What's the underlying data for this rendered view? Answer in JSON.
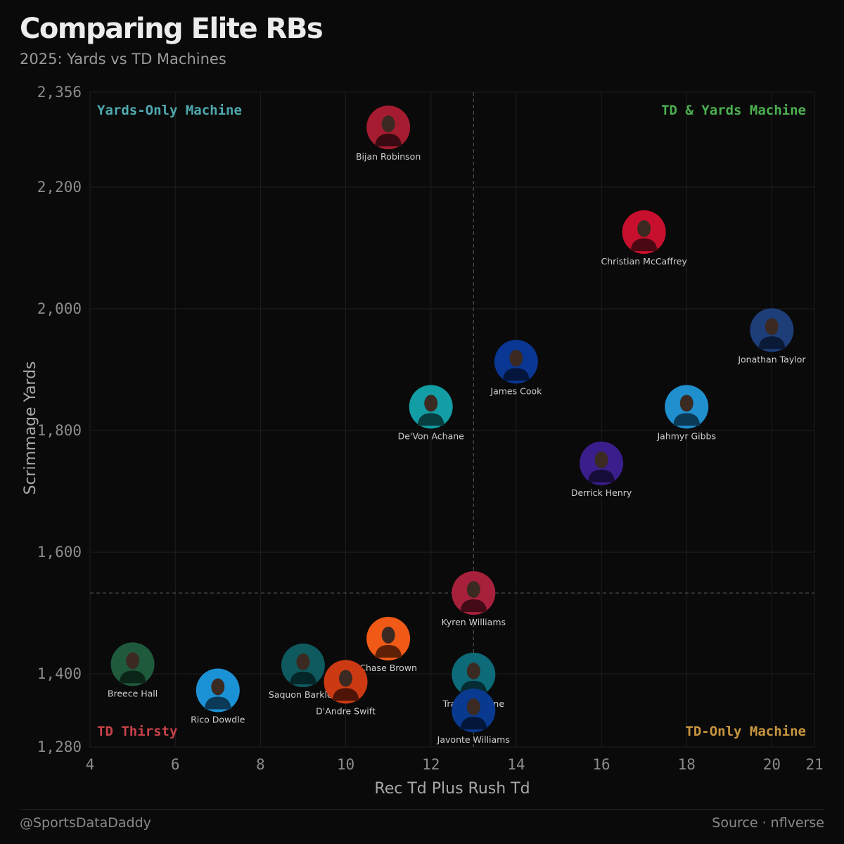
{
  "header": {
    "title": "Comparing Elite RBs",
    "subtitle": "2025: Yards vs TD Machines"
  },
  "footer": {
    "handle": "@SportsDataDaddy",
    "source": "Source · nflverse"
  },
  "chart_data": {
    "type": "scatter",
    "title": "Comparing Elite RBs",
    "subtitle": "2025: Yards vs TD Machines",
    "xlabel": "Rec Td Plus Rush Td",
    "ylabel": "Scrimmage Yards",
    "xlim": [
      4,
      21
    ],
    "ylim": [
      1280,
      2356
    ],
    "xticks": [
      4,
      6,
      8,
      10,
      12,
      14,
      16,
      18,
      20,
      21
    ],
    "xtick_labels": [
      "4",
      "6",
      "8",
      "10",
      "12",
      "14",
      "16",
      "18",
      "20",
      "21"
    ],
    "yticks": [
      1280,
      1400,
      1600,
      1800,
      2000,
      2200,
      2356
    ],
    "ytick_labels": [
      "1,280",
      "1,400",
      "1,600",
      "1,800",
      "2,000",
      "2,200",
      "2,356"
    ],
    "grid": true,
    "reference_lines": {
      "x": 13,
      "y": 1533
    },
    "quadrants": [
      {
        "label": "Yards-Only Machine",
        "position": "top-left",
        "color": "#4fa9b0"
      },
      {
        "label": "TD & Yards Machine",
        "position": "top-right",
        "color": "#4caf50"
      },
      {
        "label": "TD Thirsty",
        "position": "bottom-left",
        "color": "#c8424a"
      },
      {
        "label": "TD-Only Machine",
        "position": "bottom-right",
        "color": "#c8963e"
      }
    ],
    "points": [
      {
        "name": "Bijan Robinson",
        "x": 11,
        "y": 2298,
        "color": "#a51c30",
        "dark": "#3a0a12"
      },
      {
        "name": "Christian McCaffrey",
        "x": 17,
        "y": 2126,
        "color": "#c8102e",
        "dark": "#4a0812"
      },
      {
        "name": "Jonathan Taylor",
        "x": 20,
        "y": 1965,
        "color": "#1e3e7a",
        "dark": "#0b1a36"
      },
      {
        "name": "James Cook",
        "x": 14,
        "y": 1913,
        "color": "#0a3694",
        "dark": "#04163c"
      },
      {
        "name": "De'Von Achane",
        "x": 12,
        "y": 1839,
        "color": "#129ea4",
        "dark": "#073e40"
      },
      {
        "name": "Jahmyr Gibbs",
        "x": 18,
        "y": 1839,
        "color": "#1f8fce",
        "dark": "#0a3a56"
      },
      {
        "name": "Derrick Henry",
        "x": 16,
        "y": 1746,
        "color": "#3a1f8c",
        "dark": "#170c38"
      },
      {
        "name": "Kyren Williams",
        "x": 13,
        "y": 1533,
        "color": "#a8213c",
        "dark": "#420b17"
      },
      {
        "name": "Chase Brown",
        "x": 11,
        "y": 1458,
        "color": "#f05a16",
        "dark": "#5e2006"
      },
      {
        "name": "Breece Hall",
        "x": 5,
        "y": 1416,
        "color": "#1f5a3c",
        "dark": "#0b2618"
      },
      {
        "name": "Saquon Barkley",
        "x": 9,
        "y": 1414,
        "color": "#0e5a5e",
        "dark": "#052628"
      },
      {
        "name": "Travis Etienne",
        "x": 13,
        "y": 1399,
        "color": "#0d6a78",
        "dark": "#052c32"
      },
      {
        "name": "D'Andre Swift",
        "x": 10,
        "y": 1387,
        "color": "#cc3a14",
        "dark": "#4e1406"
      },
      {
        "name": "Rico Dowdle",
        "x": 7,
        "y": 1373,
        "color": "#1c92d6",
        "dark": "#0a3a58"
      },
      {
        "name": "Javonte Williams",
        "x": 13,
        "y": 1340,
        "color": "#0a3a90",
        "dark": "#04173a"
      }
    ]
  }
}
